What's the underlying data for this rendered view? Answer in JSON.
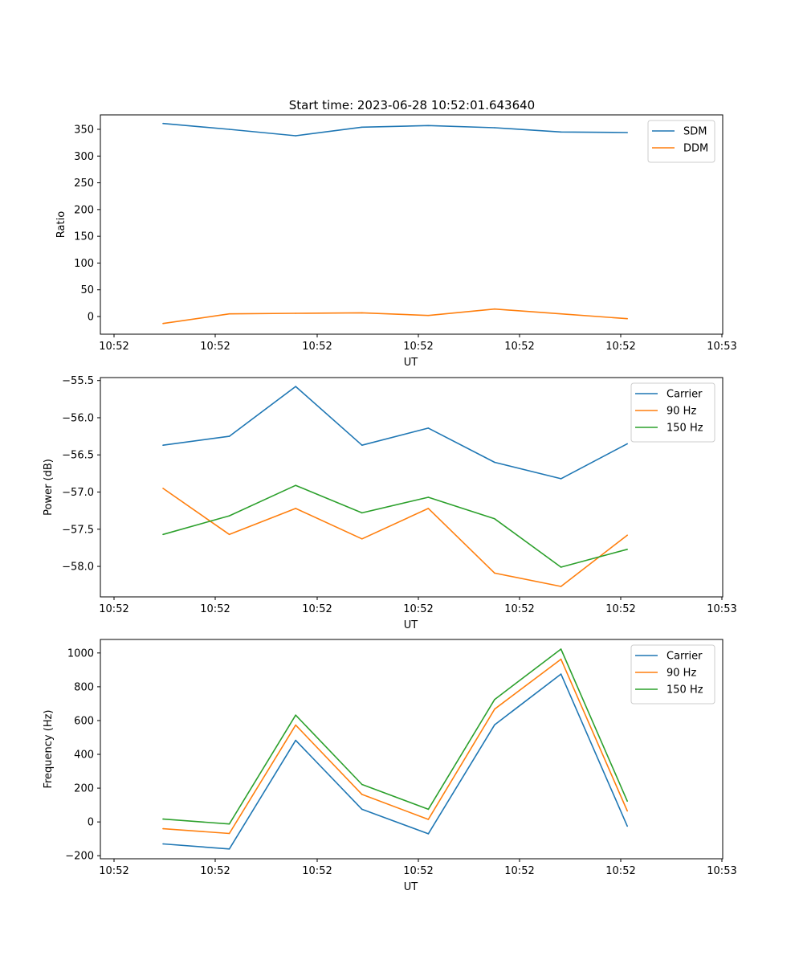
{
  "figure": {
    "title": "Start time: 2023-06-28 10:52:01.643640"
  },
  "chart_data": [
    {
      "type": "line",
      "title": "Start time: 2023-06-28 10:52:01.643640",
      "xlabel": "UT",
      "ylabel": "Ratio",
      "x_ticks": [
        "10:52",
        "10:52",
        "10:52",
        "10:52",
        "10:52",
        "10:52",
        "10:53"
      ],
      "y_ticks": [
        "0",
        "50",
        "100",
        "150",
        "200",
        "250",
        "300",
        "350"
      ],
      "ylim": [
        -33,
        377
      ],
      "y_tick_values": [
        0,
        50,
        100,
        150,
        200,
        250,
        300,
        350
      ],
      "legend": "top-right",
      "grid": false,
      "series": [
        {
          "name": "SDM",
          "color": "#1f77b4",
          "values": [
            361,
            350,
            338,
            354,
            357,
            353,
            345,
            344
          ]
        },
        {
          "name": "DDM",
          "color": "#ff7f0e",
          "values": [
            -13,
            5,
            6,
            7,
            2,
            14,
            5,
            -4
          ]
        }
      ]
    },
    {
      "type": "line",
      "title": "",
      "xlabel": "UT",
      "ylabel": "Power (dB)",
      "x_ticks": [
        "10:52",
        "10:52",
        "10:52",
        "10:52",
        "10:52",
        "10:52",
        "10:53"
      ],
      "y_ticks": [
        "−58.0",
        "−57.5",
        "−57.0",
        "−56.5",
        "−56.0",
        "−55.5"
      ],
      "ylim": [
        -58.41,
        -55.46
      ],
      "y_tick_values": [
        -58.0,
        -57.5,
        -57.0,
        -56.5,
        -56.0,
        -55.5
      ],
      "legend": "top-right",
      "grid": false,
      "series": [
        {
          "name": "Carrier",
          "color": "#1f77b4",
          "values": [
            -56.37,
            -56.25,
            -55.58,
            -56.37,
            -56.14,
            -56.6,
            -56.82,
            -56.35
          ]
        },
        {
          "name": "90 Hz",
          "color": "#ff7f0e",
          "values": [
            -56.95,
            -57.57,
            -57.22,
            -57.63,
            -57.22,
            -58.09,
            -58.27,
            -57.58
          ]
        },
        {
          "name": "150 Hz",
          "color": "#2ca02c",
          "values": [
            -57.57,
            -57.32,
            -56.91,
            -57.28,
            -57.07,
            -57.36,
            -58.01,
            -57.77
          ]
        }
      ]
    },
    {
      "type": "line",
      "title": "",
      "xlabel": "UT",
      "ylabel": "Frequency (Hz)",
      "x_ticks": [
        "10:52",
        "10:52",
        "10:52",
        "10:52",
        "10:52",
        "10:52",
        "10:53"
      ],
      "y_ticks": [
        "−200",
        "0",
        "200",
        "400",
        "600",
        "800",
        "1000"
      ],
      "ylim": [
        -218,
        1080
      ],
      "y_tick_values": [
        -200,
        0,
        200,
        400,
        600,
        800,
        1000
      ],
      "legend": "top-right",
      "grid": false,
      "series": [
        {
          "name": "Carrier",
          "color": "#1f77b4",
          "values": [
            -130,
            -160,
            483,
            75,
            -70,
            575,
            875,
            -25
          ]
        },
        {
          "name": "90 Hz",
          "color": "#ff7f0e",
          "values": [
            -40,
            -68,
            573,
            163,
            15,
            668,
            963,
            65
          ]
        },
        {
          "name": "150 Hz",
          "color": "#2ca02c",
          "values": [
            17,
            -12,
            632,
            222,
            75,
            725,
            1023,
            123
          ]
        }
      ]
    }
  ]
}
